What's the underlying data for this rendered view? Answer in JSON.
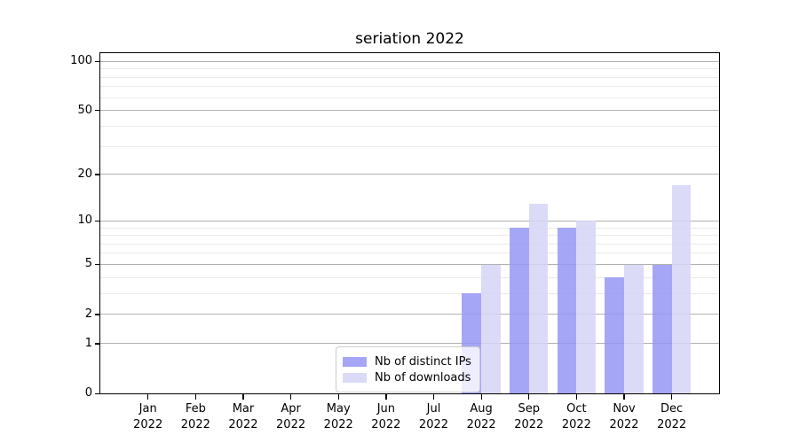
{
  "chart_data": {
    "type": "bar",
    "title": "seriation 2022",
    "categories": [
      "Jan 2022",
      "Feb 2022",
      "Mar 2022",
      "Apr 2022",
      "May 2022",
      "Jun 2022",
      "Jul 2022",
      "Aug 2022",
      "Sep 2022",
      "Oct 2022",
      "Nov 2022",
      "Dec 2022"
    ],
    "series": [
      {
        "name": "Nb of distinct IPs",
        "color": "rgba(150,150,245,0.85)",
        "values": [
          0,
          0,
          0,
          0,
          0,
          0,
          0,
          3,
          9,
          9,
          4,
          5
        ]
      },
      {
        "name": "Nb of downloads",
        "color": "rgba(213,213,247,0.85)",
        "values": [
          0,
          0,
          0,
          0,
          0,
          0,
          0,
          5,
          13,
          10,
          5,
          17
        ]
      }
    ],
    "y_axis": {
      "scale": "log1p",
      "major_ticks": [
        0,
        1,
        2,
        5,
        10,
        20,
        50,
        100
      ],
      "minor_ticks": [
        3,
        4,
        6,
        7,
        8,
        9,
        30,
        40,
        60,
        70,
        80,
        90
      ],
      "range": [
        0,
        112
      ]
    },
    "x_axis": {
      "label_lines": 2
    },
    "grid": {
      "major_color": "#b1b1b1",
      "minor_color": "#eaeaea",
      "on": true
    },
    "legend": {
      "position": "lower-center-inside",
      "entries": [
        "Nb of distinct IPs",
        "Nb of downloads"
      ]
    },
    "colors": {
      "bar_dark": "#a9a9f7",
      "bar_light": "#dcdcf8",
      "spine": "#000000"
    }
  }
}
